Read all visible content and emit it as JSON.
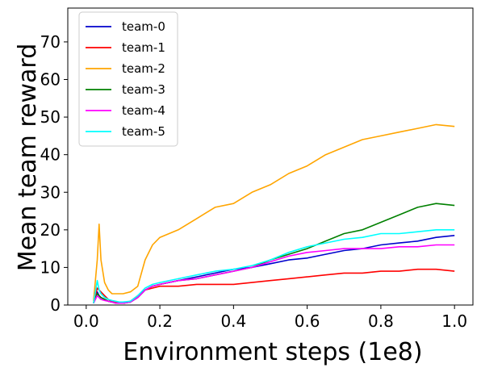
{
  "chart_data": {
    "type": "line",
    "xlabel": "Environment steps (1e8)",
    "ylabel": "Mean team reward",
    "xlim": [
      -0.05,
      1.05
    ],
    "ylim": [
      0,
      79
    ],
    "xticks": [
      "0.0",
      "0.2",
      "0.4",
      "0.6",
      "0.8",
      "1.0"
    ],
    "yticks": [
      "0",
      "10",
      "20",
      "30",
      "40",
      "50",
      "60",
      "70"
    ],
    "legend_position": "top-left",
    "grid": false,
    "x": [
      0.02,
      0.03,
      0.035,
      0.04,
      0.05,
      0.06,
      0.07,
      0.08,
      0.09,
      0.1,
      0.12,
      0.14,
      0.16,
      0.18,
      0.2,
      0.25,
      0.3,
      0.35,
      0.4,
      0.45,
      0.5,
      0.55,
      0.6,
      0.65,
      0.7,
      0.75,
      0.8,
      0.85,
      0.9,
      0.95,
      1.0
    ],
    "series": [
      {
        "name": "team-0",
        "color": "#0000cc",
        "values": [
          0.5,
          3.5,
          2.5,
          2.0,
          1.5,
          1.0,
          0.8,
          0.6,
          0.5,
          0.5,
          0.8,
          2.0,
          4.0,
          5.0,
          5.5,
          6.5,
          7.5,
          8.5,
          9.5,
          10.0,
          11.0,
          12.0,
          12.5,
          13.5,
          14.5,
          15.0,
          16.0,
          16.5,
          17.0,
          18.0,
          18.5
        ]
      },
      {
        "name": "team-1",
        "color": "#ff0000",
        "values": [
          0.5,
          4.5,
          4.0,
          3.5,
          2.5,
          1.5,
          1.0,
          0.8,
          0.5,
          0.5,
          1.0,
          2.5,
          4.0,
          4.5,
          5.0,
          5.0,
          5.5,
          5.5,
          5.5,
          6.0,
          6.5,
          7.0,
          7.5,
          8.0,
          8.5,
          8.5,
          9.0,
          9.0,
          9.5,
          9.5,
          9.0
        ]
      },
      {
        "name": "team-2",
        "color": "#ffa500",
        "values": [
          1.0,
          12.0,
          21.5,
          12.0,
          6.0,
          4.0,
          3.0,
          3.0,
          3.0,
          3.0,
          3.5,
          5.0,
          12.0,
          16.0,
          18.0,
          20.0,
          23.0,
          26.0,
          27.0,
          30.0,
          32.0,
          35.0,
          37.0,
          40.0,
          42.0,
          44.0,
          45.0,
          46.0,
          47.0,
          48.0,
          47.5
        ]
      },
      {
        "name": "team-3",
        "color": "#008000",
        "values": [
          0.5,
          3.0,
          2.5,
          2.0,
          1.5,
          1.0,
          0.8,
          0.5,
          0.5,
          0.5,
          0.8,
          2.0,
          4.0,
          5.0,
          5.5,
          6.5,
          7.0,
          8.0,
          9.0,
          10.0,
          12.0,
          13.5,
          15.0,
          17.0,
          19.0,
          20.0,
          22.0,
          24.0,
          26.0,
          27.0,
          26.5
        ]
      },
      {
        "name": "team-4",
        "color": "#ff00ff",
        "values": [
          0.5,
          2.5,
          2.0,
          1.5,
          1.2,
          1.0,
          0.8,
          0.5,
          0.5,
          0.5,
          0.8,
          2.0,
          4.0,
          5.0,
          5.5,
          6.5,
          7.0,
          8.0,
          9.0,
          10.0,
          11.5,
          13.0,
          14.0,
          14.5,
          15.0,
          15.0,
          15.0,
          15.5,
          15.5,
          16.0,
          16.0
        ]
      },
      {
        "name": "team-5",
        "color": "#00ffff",
        "values": [
          0.5,
          6.5,
          4.0,
          3.0,
          2.0,
          1.5,
          1.2,
          1.0,
          0.8,
          0.8,
          1.0,
          2.5,
          4.5,
          5.5,
          6.0,
          7.0,
          8.0,
          9.0,
          9.5,
          10.5,
          12.0,
          14.0,
          15.5,
          16.5,
          17.5,
          18.0,
          19.0,
          19.0,
          19.5,
          20.0,
          20.0
        ]
      }
    ]
  }
}
